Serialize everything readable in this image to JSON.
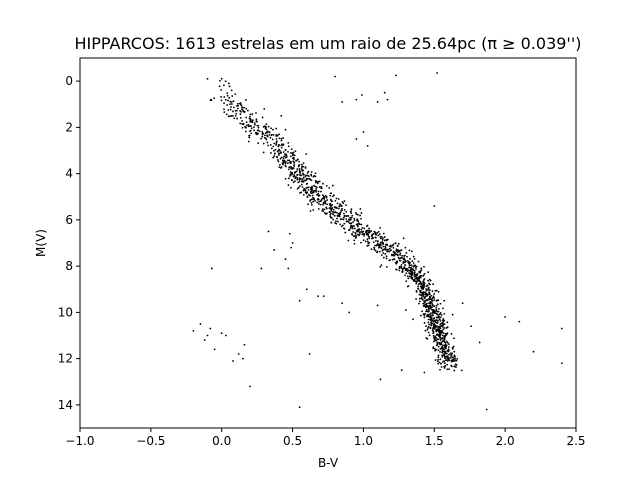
{
  "chart_data": {
    "type": "scatter",
    "title": "HIPPARCOS: 1613 estrelas em um raio de 25.64pc (π ≥ 0.039'')",
    "xlabel": "B-V",
    "ylabel": "M(V)",
    "xlim": [
      -1.0,
      2.5
    ],
    "ylim": [
      15.0,
      -1.0
    ],
    "y_inverted": true,
    "grid": false,
    "xticks": [
      -1.0,
      -0.5,
      0.0,
      0.5,
      1.0,
      1.5,
      2.0,
      2.5
    ],
    "xtick_labels": [
      "−1.0",
      "−0.5",
      "0.0",
      "0.5",
      "1.0",
      "1.5",
      "2.0",
      "2.5"
    ],
    "yticks": [
      0,
      2,
      4,
      6,
      8,
      10,
      12,
      14
    ],
    "ytick_labels": [
      "0",
      "2",
      "4",
      "6",
      "8",
      "10",
      "12",
      "14"
    ],
    "marker_color": "#000000",
    "n_stars": 1613,
    "main_sequence_trend": [
      [
        0.0,
        0.5
      ],
      [
        0.2,
        1.8
      ],
      [
        0.4,
        2.8
      ],
      [
        0.55,
        4.0
      ],
      [
        0.65,
        4.8
      ],
      [
        0.8,
        5.6
      ],
      [
        1.0,
        6.5
      ],
      [
        1.2,
        7.4
      ],
      [
        1.35,
        8.2
      ],
      [
        1.45,
        9.2
      ],
      [
        1.5,
        10.2
      ],
      [
        1.55,
        11.2
      ],
      [
        1.62,
        12.4
      ]
    ],
    "outliers": [
      [
        -0.1,
        -0.1
      ],
      [
        0.0,
        -0.1
      ],
      [
        0.05,
        0.1
      ],
      [
        0.8,
        -0.2
      ],
      [
        1.23,
        -0.25
      ],
      [
        1.52,
        -0.35
      ],
      [
        0.95,
        0.8
      ],
      [
        0.85,
        0.9
      ],
      [
        0.99,
        0.6
      ],
      [
        1.1,
        0.9
      ],
      [
        1.15,
        0.5
      ],
      [
        1.17,
        0.8
      ],
      [
        1.0,
        2.2
      ],
      [
        0.95,
        2.5
      ],
      [
        1.03,
        2.8
      ],
      [
        0.3,
        1.2
      ],
      [
        0.42,
        1.5
      ],
      [
        0.45,
        2.1
      ],
      [
        0.48,
        6.6
      ],
      [
        0.5,
        7.0
      ],
      [
        0.49,
        7.2
      ],
      [
        0.33,
        6.5
      ],
      [
        0.37,
        7.3
      ],
      [
        0.28,
        8.1
      ],
      [
        0.45,
        7.7
      ],
      [
        0.47,
        8.1
      ],
      [
        0.55,
        9.5
      ],
      [
        0.6,
        9.0
      ],
      [
        0.68,
        9.3
      ],
      [
        0.72,
        9.3
      ],
      [
        0.85,
        9.6
      ],
      [
        0.9,
        10.0
      ],
      [
        1.1,
        9.7
      ],
      [
        0.55,
        14.1
      ],
      [
        0.62,
        11.8
      ],
      [
        1.12,
        12.9
      ],
      [
        1.27,
        12.5
      ],
      [
        1.43,
        12.6
      ],
      [
        1.5,
        5.4
      ],
      [
        1.57,
        9.5
      ],
      [
        1.63,
        10.1
      ],
      [
        1.7,
        9.6
      ],
      [
        1.87,
        14.2
      ],
      [
        2.0,
        10.2
      ],
      [
        2.1,
        10.4
      ],
      [
        2.2,
        11.7
      ],
      [
        2.4,
        10.7
      ],
      [
        2.4,
        12.2
      ],
      [
        1.76,
        10.6
      ],
      [
        1.82,
        11.3
      ],
      [
        1.35,
        10.3
      ],
      [
        1.3,
        9.9
      ]
    ],
    "white_dwarfs": [
      [
        -0.2,
        10.8
      ],
      [
        -0.15,
        10.5
      ],
      [
        -0.12,
        11.2
      ],
      [
        -0.1,
        11.0
      ],
      [
        -0.08,
        10.7
      ],
      [
        -0.05,
        11.6
      ],
      [
        0.0,
        10.9
      ],
      [
        0.03,
        11.0
      ],
      [
        0.08,
        12.1
      ],
      [
        0.12,
        11.8
      ],
      [
        0.15,
        12.0
      ],
      [
        0.16,
        11.4
      ],
      [
        -0.07,
        8.1
      ],
      [
        0.2,
        13.2
      ]
    ]
  }
}
